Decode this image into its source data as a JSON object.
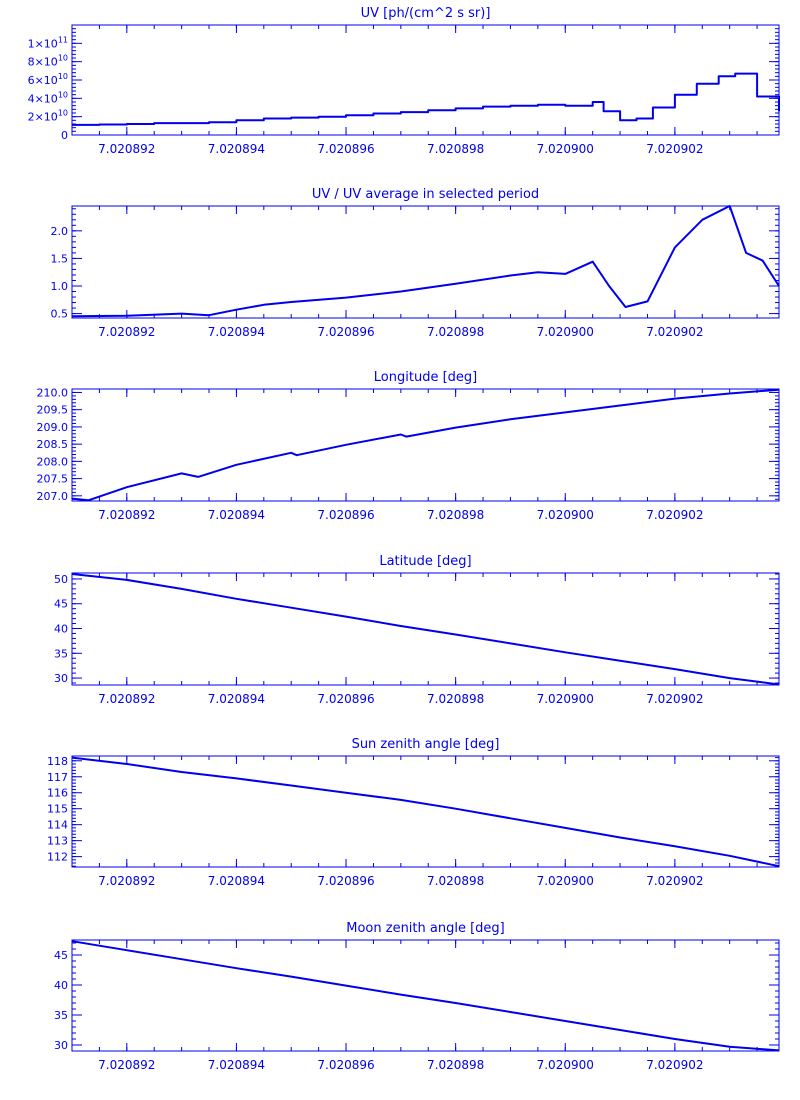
{
  "colors": {
    "ink": "#0000ee",
    "background": "#ffffff"
  },
  "x_axis": {
    "tick_labels": [
      "7.020892",
      "7.020894",
      "7.020896",
      "7.020898",
      "7.020900",
      "7.020902"
    ]
  },
  "chart_data": [
    {
      "type": "line",
      "step": true,
      "title": "UV [ph/(cm^2 s sr)]",
      "xlim": [
        7.020891,
        7.0209039
      ],
      "ylim": [
        0,
        120000000000.0
      ],
      "ytick_labels": [
        {
          "value": 0,
          "base": "0",
          "exp": ""
        },
        {
          "value": 20000000000.0,
          "base": "2×10",
          "exp": "10"
        },
        {
          "value": 40000000000.0,
          "base": "4×10",
          "exp": "10"
        },
        {
          "value": 60000000000.0,
          "base": "6×10",
          "exp": "10"
        },
        {
          "value": 80000000000.0,
          "base": "8×10",
          "exp": "10"
        },
        {
          "value": 100000000000.0,
          "base": "1×10",
          "exp": "11"
        }
      ],
      "x": [
        7.020891,
        7.0208915,
        7.020892,
        7.0208925,
        7.020893,
        7.0208935,
        7.020894,
        7.0208945,
        7.020895,
        7.0208955,
        7.020896,
        7.0208965,
        7.020897,
        7.0208975,
        7.020898,
        7.0208985,
        7.020899,
        7.0208995,
        7.0209,
        7.0209005,
        7.0209007,
        7.020901,
        7.0209013,
        7.0209016,
        7.020902,
        7.0209024,
        7.0209028,
        7.0209031,
        7.0209035,
        7.0209039
      ],
      "y": [
        11000000000.0,
        11500000000.0,
        12000000000.0,
        13000000000.0,
        13000000000.0,
        14000000000.0,
        16000000000.0,
        18000000000.0,
        19000000000.0,
        20000000000.0,
        21500000000.0,
        23500000000.0,
        25000000000.0,
        27000000000.0,
        29000000000.0,
        31000000000.0,
        32000000000.0,
        33000000000.0,
        32000000000.0,
        36000000000.0,
        26000000000.0,
        16000000000.0,
        18000000000.0,
        30000000000.0,
        44000000000.0,
        56000000000.0,
        64000000000.0,
        67000000000.0,
        42000000000.0,
        26000000000.0
      ]
    },
    {
      "type": "line",
      "title": "UV / UV average in selected period",
      "xlim": [
        7.020891,
        7.0209039
      ],
      "ylim": [
        0.42,
        2.45
      ],
      "ytick_labels": [
        {
          "value": 0.5,
          "base": "0.5",
          "exp": ""
        },
        {
          "value": 1.0,
          "base": "1.0",
          "exp": ""
        },
        {
          "value": 1.5,
          "base": "1.5",
          "exp": ""
        },
        {
          "value": 2.0,
          "base": "2.0",
          "exp": ""
        }
      ],
      "x": [
        7.020891,
        7.020892,
        7.020893,
        7.0208935,
        7.020894,
        7.0208945,
        7.020895,
        7.020896,
        7.020897,
        7.020898,
        7.020899,
        7.0208995,
        7.0209,
        7.0209005,
        7.0209008,
        7.0209011,
        7.0209015,
        7.020902,
        7.0209025,
        7.020903,
        7.0209033,
        7.0209036,
        7.0209039
      ],
      "y": [
        0.45,
        0.46,
        0.5,
        0.47,
        0.57,
        0.66,
        0.71,
        0.79,
        0.9,
        1.04,
        1.19,
        1.25,
        1.22,
        1.44,
        1.0,
        0.62,
        0.72,
        1.7,
        2.2,
        2.45,
        1.6,
        1.46,
        1.0
      ]
    },
    {
      "type": "line",
      "title": "Longitude [deg]",
      "xlim": [
        7.020891,
        7.0209039
      ],
      "ylim": [
        206.85,
        210.1
      ],
      "ytick_labels": [
        {
          "value": 207.0,
          "base": "207.0",
          "exp": ""
        },
        {
          "value": 207.5,
          "base": "207.5",
          "exp": ""
        },
        {
          "value": 208.0,
          "base": "208.0",
          "exp": ""
        },
        {
          "value": 208.5,
          "base": "208.5",
          "exp": ""
        },
        {
          "value": 209.0,
          "base": "209.0",
          "exp": ""
        },
        {
          "value": 209.5,
          "base": "209.5",
          "exp": ""
        },
        {
          "value": 210.0,
          "base": "210.0",
          "exp": ""
        }
      ],
      "x": [
        7.020891,
        7.0208913,
        7.020892,
        7.020893,
        7.0208933,
        7.020894,
        7.020895,
        7.0208951,
        7.020896,
        7.020897,
        7.0208971,
        7.020898,
        7.020899,
        7.0209,
        7.020901,
        7.020902,
        7.020903,
        7.0209039
      ],
      "y": [
        206.92,
        206.87,
        207.25,
        207.65,
        207.55,
        207.9,
        208.25,
        208.18,
        208.48,
        208.78,
        208.72,
        208.98,
        209.22,
        209.42,
        209.62,
        209.82,
        209.97,
        210.08
      ]
    },
    {
      "type": "line",
      "title": "Latitude [deg]",
      "xlim": [
        7.020891,
        7.0209039
      ],
      "ylim": [
        28.6,
        51.2
      ],
      "ytick_labels": [
        {
          "value": 30,
          "base": "30",
          "exp": ""
        },
        {
          "value": 35,
          "base": "35",
          "exp": ""
        },
        {
          "value": 40,
          "base": "40",
          "exp": ""
        },
        {
          "value": 45,
          "base": "45",
          "exp": ""
        },
        {
          "value": 50,
          "base": "50",
          "exp": ""
        }
      ],
      "x": [
        7.020891,
        7.020892,
        7.020893,
        7.020894,
        7.020895,
        7.020896,
        7.020897,
        7.020898,
        7.020899,
        7.0209,
        7.020901,
        7.020902,
        7.020903,
        7.0209039
      ],
      "y": [
        51.0,
        49.8,
        48.0,
        46.0,
        44.2,
        42.4,
        40.5,
        38.8,
        37.0,
        35.2,
        33.5,
        31.8,
        30.0,
        28.7
      ]
    },
    {
      "type": "line",
      "title": "Sun zenith angle [deg]",
      "xlim": [
        7.020891,
        7.0209039
      ],
      "ylim": [
        111.35,
        118.3
      ],
      "ytick_labels": [
        {
          "value": 112,
          "base": "112",
          "exp": ""
        },
        {
          "value": 113,
          "base": "113",
          "exp": ""
        },
        {
          "value": 114,
          "base": "114",
          "exp": ""
        },
        {
          "value": 115,
          "base": "115",
          "exp": ""
        },
        {
          "value": 116,
          "base": "116",
          "exp": ""
        },
        {
          "value": 117,
          "base": "117",
          "exp": ""
        },
        {
          "value": 118,
          "base": "118",
          "exp": ""
        }
      ],
      "x": [
        7.020891,
        7.020892,
        7.020893,
        7.020894,
        7.020895,
        7.020896,
        7.020897,
        7.020898,
        7.020899,
        7.0209,
        7.020901,
        7.020902,
        7.020903,
        7.0209039
      ],
      "y": [
        118.2,
        117.8,
        117.3,
        116.9,
        116.45,
        116.0,
        115.55,
        115.0,
        114.4,
        113.8,
        113.2,
        112.65,
        112.05,
        111.4
      ]
    },
    {
      "type": "line",
      "title": "Moon zenith angle [deg]",
      "xlim": [
        7.020891,
        7.0209039
      ],
      "ylim": [
        29.0,
        47.5
      ],
      "ytick_labels": [
        {
          "value": 30,
          "base": "30",
          "exp": ""
        },
        {
          "value": 35,
          "base": "35",
          "exp": ""
        },
        {
          "value": 40,
          "base": "40",
          "exp": ""
        },
        {
          "value": 45,
          "base": "45",
          "exp": ""
        }
      ],
      "x": [
        7.020891,
        7.020892,
        7.020893,
        7.020894,
        7.020895,
        7.020896,
        7.020897,
        7.020898,
        7.020899,
        7.0209,
        7.020901,
        7.020902,
        7.020903,
        7.0209039
      ],
      "y": [
        47.3,
        45.8,
        44.3,
        42.8,
        41.4,
        39.9,
        38.4,
        37.0,
        35.5,
        34.0,
        32.5,
        31.0,
        29.7,
        29.1
      ]
    }
  ]
}
